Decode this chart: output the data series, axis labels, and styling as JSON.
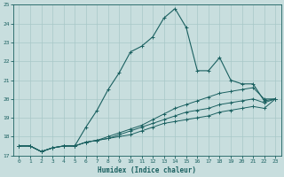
{
  "xlabel": "Humidex (Indice chaleur)",
  "background_color": "#c8dede",
  "grid_color": "#a8c8c8",
  "line_color": "#1a6060",
  "xlim": [
    -0.5,
    23.5
  ],
  "ylim": [
    17,
    25
  ],
  "yticks": [
    17,
    18,
    19,
    20,
    21,
    22,
    23,
    24,
    25
  ],
  "xticks": [
    0,
    1,
    2,
    3,
    4,
    5,
    6,
    7,
    8,
    9,
    10,
    11,
    12,
    13,
    14,
    15,
    16,
    17,
    18,
    19,
    20,
    21,
    22,
    23
  ],
  "series": [
    [
      17.5,
      17.5,
      17.2,
      17.4,
      17.5,
      17.5,
      18.5,
      19.4,
      20.5,
      21.4,
      22.5,
      22.8,
      23.3,
      24.3,
      24.8,
      23.8,
      21.5,
      21.5,
      22.2,
      21.0,
      20.8,
      20.8,
      19.9,
      20.0
    ],
    [
      17.5,
      17.5,
      17.2,
      17.4,
      17.5,
      17.5,
      17.7,
      17.8,
      18.0,
      18.2,
      18.4,
      18.6,
      18.9,
      19.2,
      19.5,
      19.7,
      19.9,
      20.1,
      20.3,
      20.4,
      20.5,
      20.6,
      20.0,
      20.0
    ],
    [
      17.5,
      17.5,
      17.2,
      17.4,
      17.5,
      17.5,
      17.7,
      17.8,
      17.9,
      18.1,
      18.3,
      18.5,
      18.7,
      18.9,
      19.1,
      19.3,
      19.4,
      19.5,
      19.7,
      19.8,
      19.9,
      20.0,
      19.8,
      20.0
    ],
    [
      17.5,
      17.5,
      17.2,
      17.4,
      17.5,
      17.5,
      17.7,
      17.8,
      17.9,
      18.0,
      18.1,
      18.3,
      18.5,
      18.7,
      18.8,
      18.9,
      19.0,
      19.1,
      19.3,
      19.4,
      19.5,
      19.6,
      19.5,
      20.0
    ]
  ]
}
